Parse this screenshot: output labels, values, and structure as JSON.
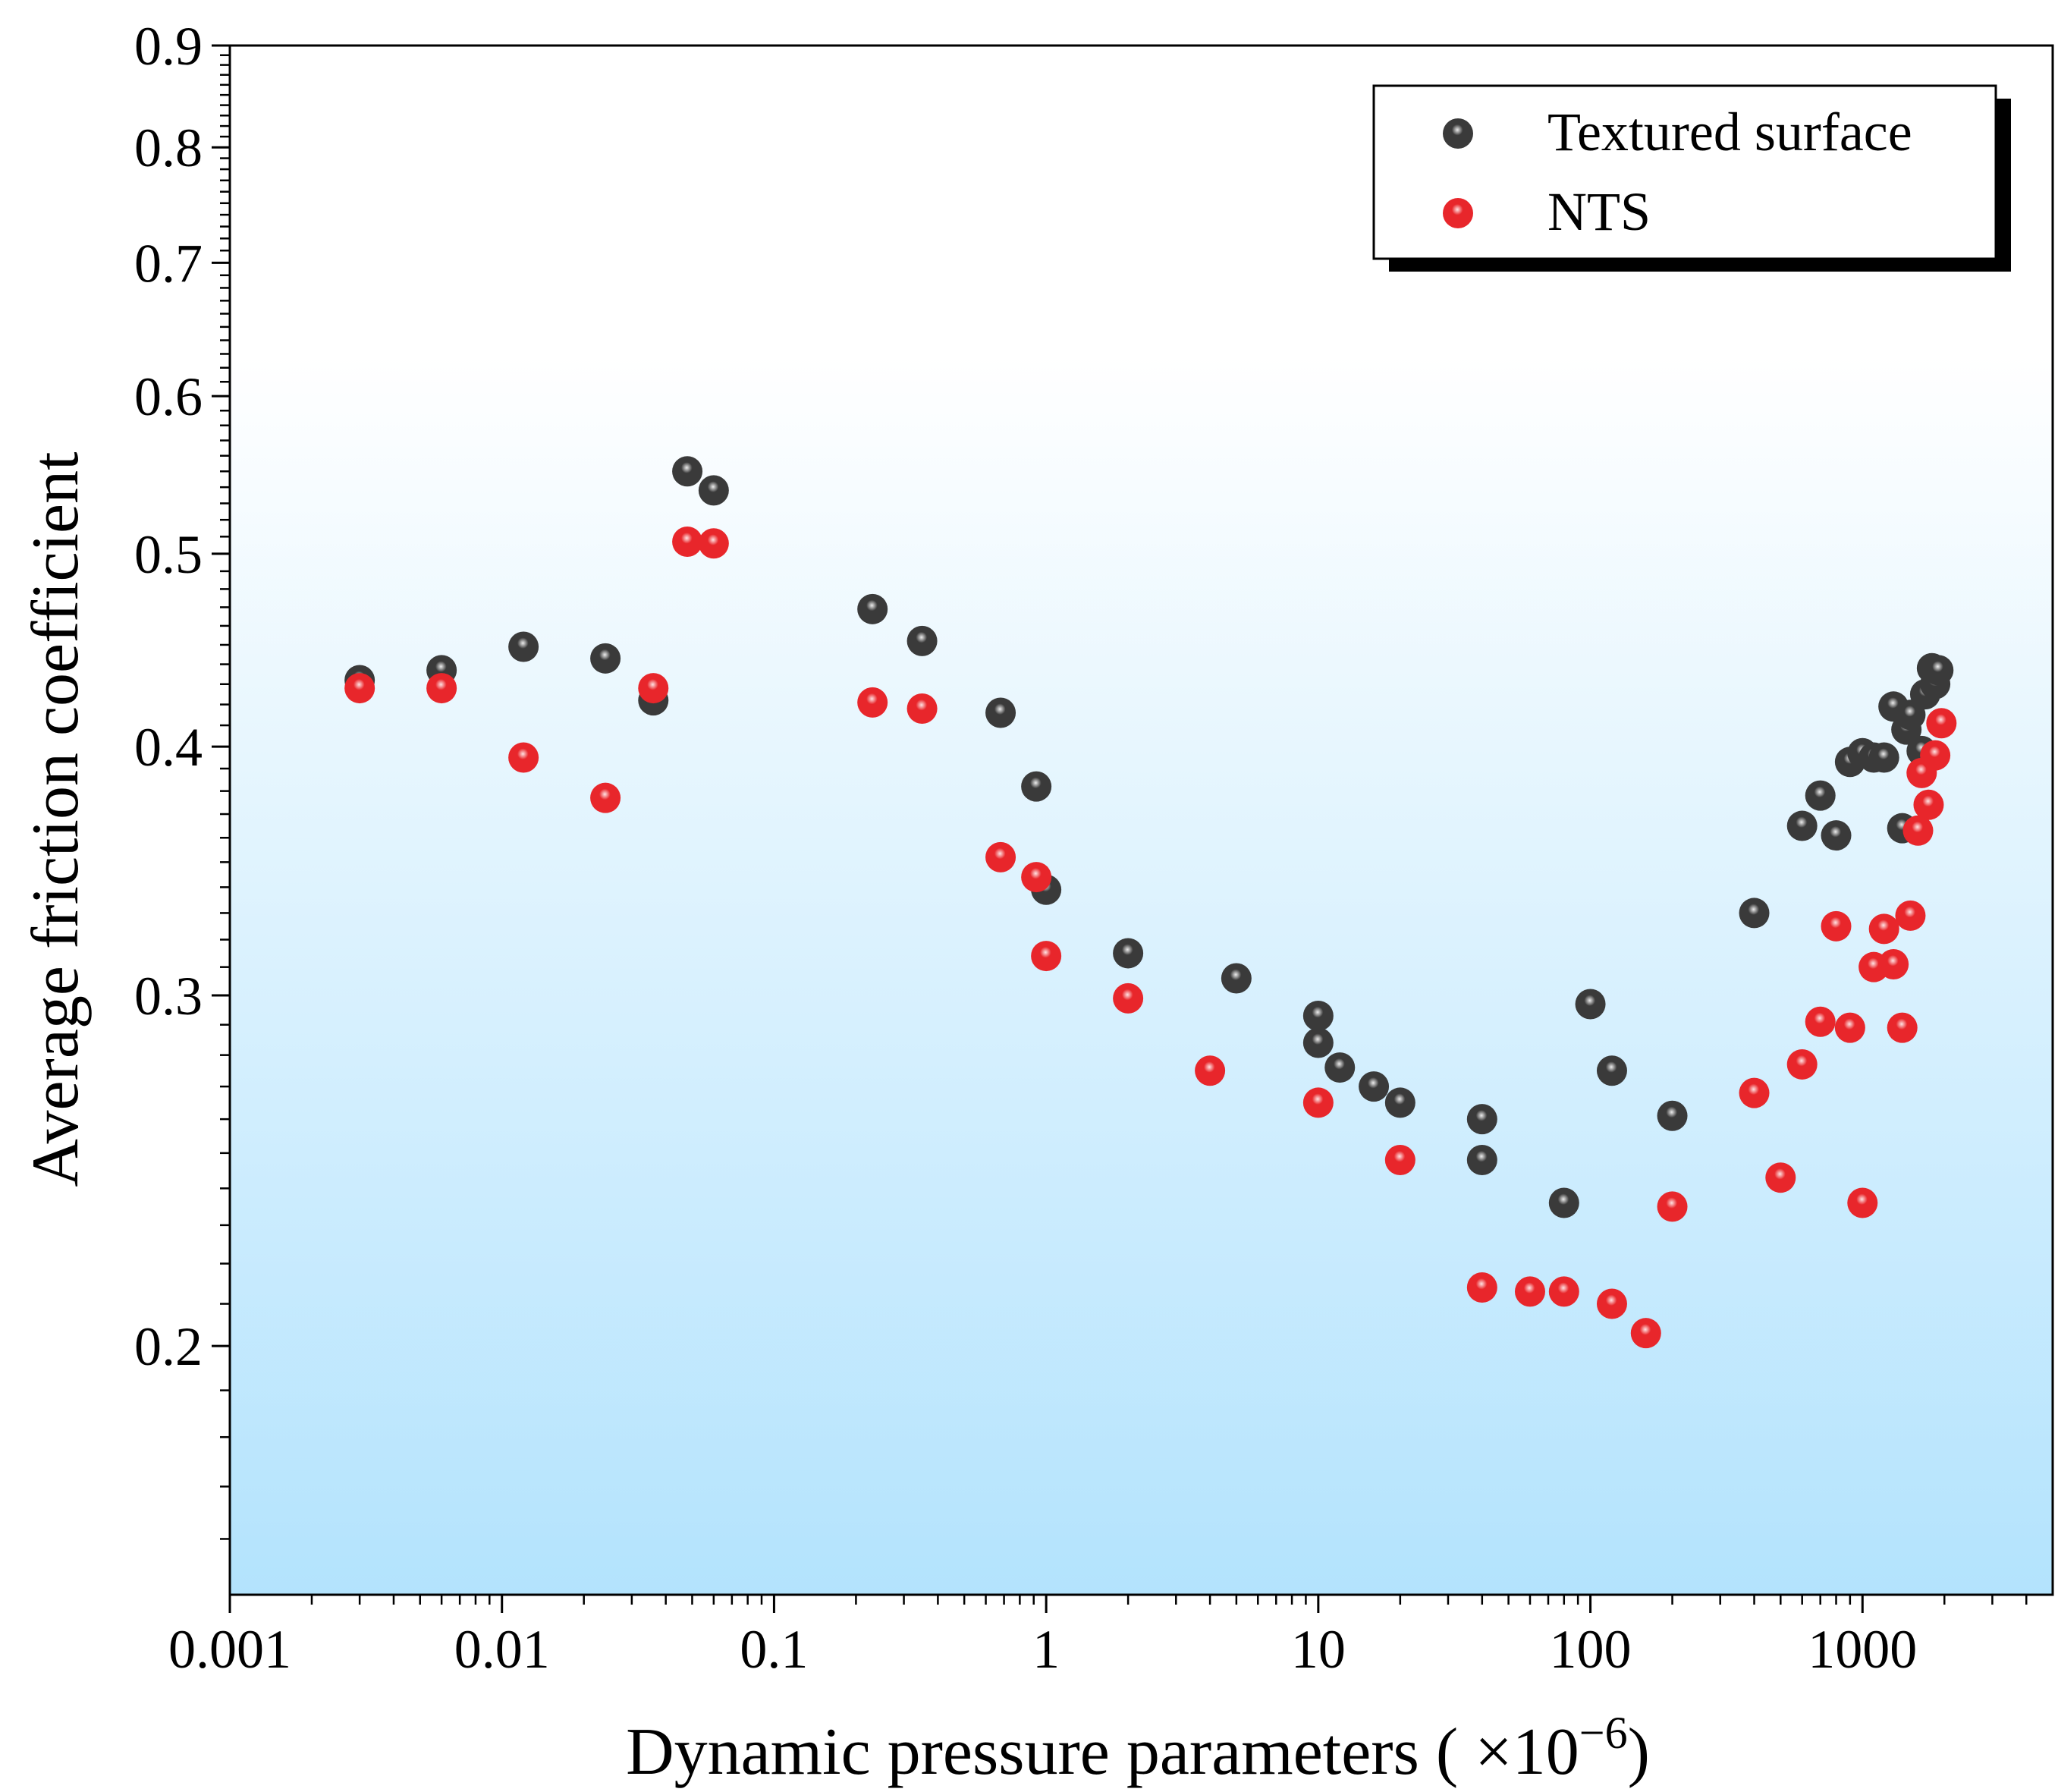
{
  "chart_data": {
    "type": "scatter",
    "title": "",
    "xlabel": "Dynamic pressure parameters",
    "xlabel_unit": "( ×10",
    "xlabel_exp": "−6",
    "xlabel_close": ")",
    "ylabel": "Average friction coefficient",
    "x_scale": "log",
    "y_scale": "log",
    "xlim": [
      0.001,
      5000
    ],
    "ylim": [
      0.15,
      0.9
    ],
    "x_ticks": [
      0.001,
      0.01,
      0.1,
      1,
      10,
      100,
      1000
    ],
    "x_tick_labels": [
      "0.001",
      "0.01",
      "0.1",
      "1",
      "10",
      "100",
      "1000"
    ],
    "y_ticks": [
      0.2,
      0.3,
      0.4,
      0.5,
      0.6,
      0.7,
      0.8,
      0.9
    ],
    "y_tick_labels": [
      "0.2",
      "0.3",
      "0.4",
      "0.5",
      "0.6",
      "0.7",
      "0.8",
      "0.9"
    ],
    "legend_position": "top-right",
    "background": "vertical gradient white to light blue",
    "colors": {
      "bg_top": "#ffffff",
      "bg_bottom": "#b3e3fd"
    },
    "series": [
      {
        "name": "Textured surface",
        "color": "#3a3a3a",
        "highlight": "#eeeeee",
        "points": [
          [
            0.003,
            0.432
          ],
          [
            0.006,
            0.437
          ],
          [
            0.012,
            0.449
          ],
          [
            0.024,
            0.443
          ],
          [
            0.036,
            0.422
          ],
          [
            0.048,
            0.55
          ],
          [
            0.06,
            0.538
          ],
          [
            0.23,
            0.469
          ],
          [
            0.35,
            0.452
          ],
          [
            0.68,
            0.416
          ],
          [
            0.92,
            0.382
          ],
          [
            1.0,
            0.339
          ],
          [
            2.0,
            0.315
          ],
          [
            5.0,
            0.306
          ],
          [
            10,
            0.293
          ],
          [
            10,
            0.284
          ],
          [
            12,
            0.276
          ],
          [
            16,
            0.27
          ],
          [
            20,
            0.265
          ],
          [
            40,
            0.26
          ],
          [
            40,
            0.248
          ],
          [
            80,
            0.236
          ],
          [
            100,
            0.297
          ],
          [
            120,
            0.275
          ],
          [
            200,
            0.261
          ],
          [
            400,
            0.33
          ],
          [
            600,
            0.365
          ],
          [
            700,
            0.378
          ],
          [
            800,
            0.361
          ],
          [
            900,
            0.393
          ],
          [
            1000,
            0.397
          ],
          [
            1100,
            0.395
          ],
          [
            1200,
            0.395
          ],
          [
            1300,
            0.419
          ],
          [
            1400,
            0.364
          ],
          [
            1450,
            0.408
          ],
          [
            1500,
            0.415
          ],
          [
            1650,
            0.398
          ],
          [
            1700,
            0.425
          ],
          [
            1800,
            0.438
          ],
          [
            1850,
            0.43
          ],
          [
            1900,
            0.437
          ]
        ]
      },
      {
        "name": "NTS",
        "color": "#e8262b",
        "highlight": "#ffe4e4",
        "points": [
          [
            0.003,
            0.428
          ],
          [
            0.006,
            0.428
          ],
          [
            0.012,
            0.395
          ],
          [
            0.024,
            0.377
          ],
          [
            0.036,
            0.428
          ],
          [
            0.048,
            0.507
          ],
          [
            0.06,
            0.506
          ],
          [
            0.23,
            0.421
          ],
          [
            0.35,
            0.418
          ],
          [
            0.68,
            0.352
          ],
          [
            0.92,
            0.344
          ],
          [
            1.0,
            0.314
          ],
          [
            2.0,
            0.299
          ],
          [
            4.0,
            0.275
          ],
          [
            10,
            0.265
          ],
          [
            20,
            0.248
          ],
          [
            40,
            0.214
          ],
          [
            60,
            0.213
          ],
          [
            80,
            0.213
          ],
          [
            120,
            0.21
          ],
          [
            160,
            0.203
          ],
          [
            200,
            0.235
          ],
          [
            400,
            0.268
          ],
          [
            500,
            0.243
          ],
          [
            600,
            0.277
          ],
          [
            700,
            0.291
          ],
          [
            800,
            0.325
          ],
          [
            900,
            0.289
          ],
          [
            1000,
            0.236
          ],
          [
            1100,
            0.31
          ],
          [
            1200,
            0.324
          ],
          [
            1300,
            0.311
          ],
          [
            1400,
            0.289
          ],
          [
            1500,
            0.329
          ],
          [
            1600,
            0.363
          ],
          [
            1650,
            0.388
          ],
          [
            1750,
            0.374
          ],
          [
            1850,
            0.396
          ],
          [
            1950,
            0.411
          ]
        ]
      }
    ]
  }
}
